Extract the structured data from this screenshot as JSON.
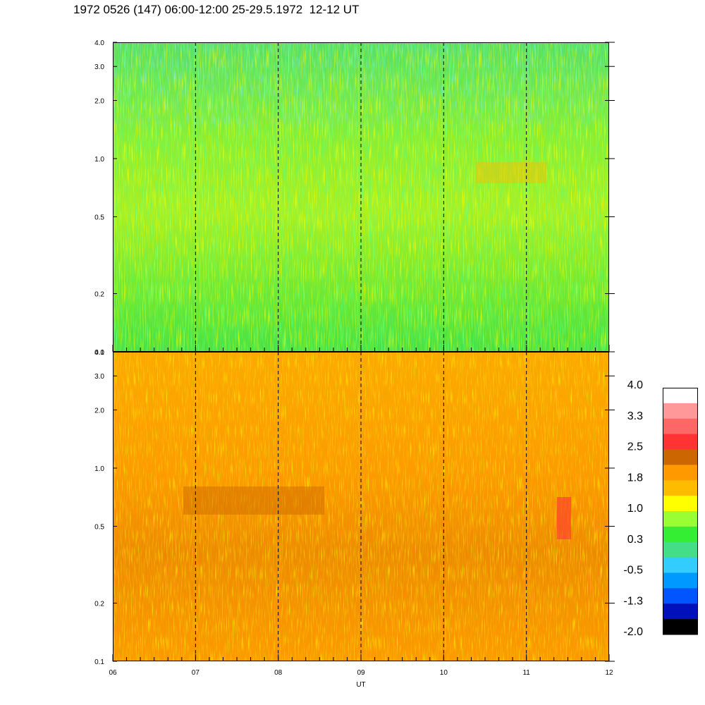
{
  "title": "1972 0526 (147) 06:00-12:00 25-29.5.1972  12-12 UT",
  "chart_data": [
    {
      "type": "heatmap",
      "panel": "top",
      "x": [
        "06",
        "07",
        "08",
        "09",
        "10",
        "11",
        "12"
      ],
      "xlim": [
        6,
        12
      ],
      "ylim": [
        0.1,
        4.0
      ],
      "yscale": "log",
      "yticks": [
        "4.0",
        "3.0",
        "2.0",
        "1.0",
        "0.5",
        "0.2",
        "0.1"
      ],
      "dominant_levels": [
        "0.3",
        "1.0"
      ],
      "vertical_dashed_lines": [
        "07",
        "08",
        "09",
        "10",
        "11"
      ]
    },
    {
      "type": "heatmap",
      "panel": "bottom",
      "x": [
        "06",
        "07",
        "08",
        "09",
        "10",
        "11",
        "12"
      ],
      "xlim": [
        6,
        12
      ],
      "ylim": [
        0.1,
        4.0
      ],
      "yscale": "log",
      "yticks": [
        "4.0",
        "3.0",
        "2.0",
        "1.0",
        "0.5",
        "0.2",
        "0.1"
      ],
      "xlabel": "UT",
      "dominant_levels": [
        "1.8",
        "2.5"
      ],
      "vertical_dashed_lines": [
        "07",
        "08",
        "09",
        "10",
        "11"
      ]
    }
  ],
  "colorbar": {
    "labels": [
      "4.0",
      "3.3",
      "2.5",
      "1.8",
      "1.0",
      "0.3",
      "-0.5",
      "-1.3",
      "-2.0"
    ],
    "colors": [
      "#ffffff",
      "#ff9999",
      "#ff6666",
      "#ff3333",
      "#cc6600",
      "#ff9900",
      "#ffbb00",
      "#ffff00",
      "#99ff33",
      "#33ee33",
      "#44dd88",
      "#33ccff",
      "#0099ff",
      "#0055ff",
      "#0011bb",
      "#000000"
    ]
  },
  "xaxis_label": "UT"
}
